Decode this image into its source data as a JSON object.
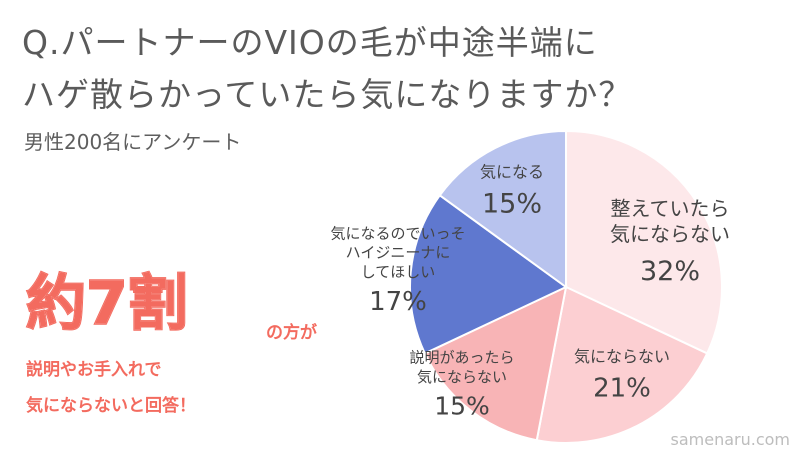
{
  "title_line1": "Q.パートナーのVIOの毛が中途半端に",
  "title_line2": "ハゲ散らかっていたら気になりますか？",
  "subtitle": "男性200名にアンケート",
  "highlight": {
    "main": "約7割",
    "suffix": "の方が",
    "line1": "説明やお手入れで",
    "line2": "気にならないと回答！"
  },
  "watermark": "samenaru.com",
  "chart_data": {
    "type": "pie",
    "start": "top",
    "direction": "clockwise",
    "slices": [
      {
        "label": [
          "整えていたら",
          "気にならない"
        ],
        "value": 32,
        "value_label": "32%",
        "color": "#fde8ea"
      },
      {
        "label": [
          "気にならない"
        ],
        "value": 21,
        "value_label": "21%",
        "color": "#fccfd2"
      },
      {
        "label": [
          "説明があったら",
          "気にならない"
        ],
        "value": 15,
        "value_label": "15%",
        "color": "#f8b4b6"
      },
      {
        "label": [
          "気になるのでいっそ",
          "ハイジニーナに",
          "してほしい"
        ],
        "value": 17,
        "value_label": "17%",
        "color": "#5f78cf"
      },
      {
        "label": [
          "気になる"
        ],
        "value": 15,
        "value_label": "15%",
        "color": "#b8c3ee"
      }
    ]
  }
}
